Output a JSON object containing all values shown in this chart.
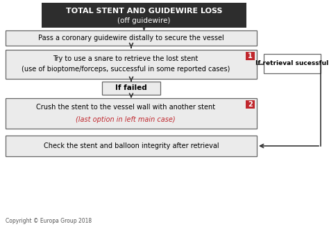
{
  "title_line1": "TOTAL STENT AND GUIDEWIRE LOSS",
  "title_line2": "(off guidewire)",
  "title_bg": "#2d2d2d",
  "title_fg": "#ffffff",
  "box1_text": "Pass a coronary guidewire distally to secure the vessel",
  "box2_line1": "Try to use a snare to retrieve the lost stent",
  "box2_line2": "(use of bioptome/forceps, successful in some reported cases)",
  "box3_text": "If failed",
  "box4_line1": "Crush the stent to the vessel wall with another stent",
  "box4_line2": "(last option in left main case)",
  "box5_text": "Check the stent and balloon integrity after retrieval",
  "side_box_text": "If retrieval sucessful",
  "copyright": "Copyright © Europa Group 2018",
  "box_bg": "#ebebeb",
  "box_border": "#666666",
  "badge_bg": "#c0272d",
  "badge_fg": "#ffffff",
  "side_box_bg": "#ffffff",
  "side_box_border": "#666666",
  "arrow_color": "#333333",
  "red_text_color": "#c0272d",
  "fig_w": 4.74,
  "fig_h": 3.34,
  "dpi": 100
}
